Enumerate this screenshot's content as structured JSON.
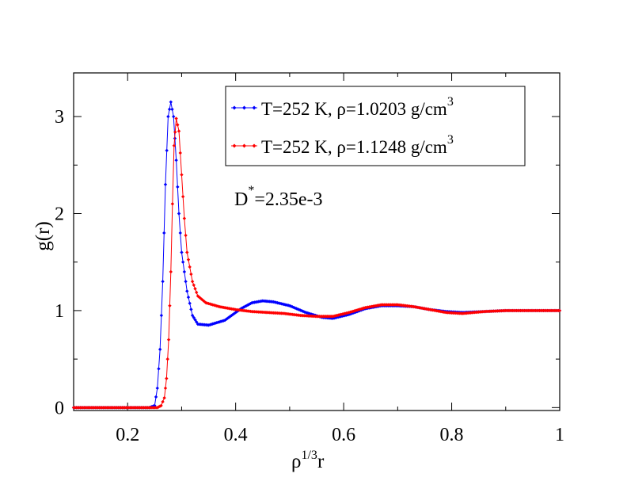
{
  "chart_data": {
    "type": "line",
    "title": "",
    "xlabel": {
      "base": "ρ",
      "sup": "1/3",
      "tail": "r"
    },
    "ylabel": "g(r)",
    "xlim": [
      0.1,
      1.0
    ],
    "ylim": [
      -0.03,
      3.45
    ],
    "xticks": [
      0.2,
      0.4,
      0.6,
      0.8,
      1.0
    ],
    "xtick_labels": [
      "0.2",
      "0.4",
      "0.6",
      "0.8",
      "1"
    ],
    "yticks": [
      0,
      1,
      2,
      3
    ],
    "ytick_labels": [
      "0",
      "1",
      "2",
      "3"
    ],
    "x_minor_step": 0.1,
    "y_minor_step": 0.5,
    "grid": false,
    "legend_position": "top-right",
    "annotation": {
      "base": "D",
      "sup": "*",
      "tail": "=2.35e-3"
    },
    "series": [
      {
        "name": "T=252 K, ρ=1.0203 g/cm3",
        "legend": {
          "text": "T=252 K, ρ=1.0203 g/cm",
          "sup": "3"
        },
        "color": "#0000ff",
        "points": [
          [
            0.1,
            0.0
          ],
          [
            0.24,
            0.0
          ],
          [
            0.25,
            0.02
          ],
          [
            0.255,
            0.2
          ],
          [
            0.26,
            0.6
          ],
          [
            0.265,
            1.3
          ],
          [
            0.27,
            2.3
          ],
          [
            0.275,
            3.0
          ],
          [
            0.28,
            3.15
          ],
          [
            0.285,
            3.0
          ],
          [
            0.29,
            2.55
          ],
          [
            0.295,
            2.0
          ],
          [
            0.3,
            1.6
          ],
          [
            0.31,
            1.2
          ],
          [
            0.32,
            0.95
          ],
          [
            0.33,
            0.86
          ],
          [
            0.35,
            0.85
          ],
          [
            0.38,
            0.9
          ],
          [
            0.41,
            1.02
          ],
          [
            0.43,
            1.08
          ],
          [
            0.45,
            1.1
          ],
          [
            0.47,
            1.09
          ],
          [
            0.5,
            1.05
          ],
          [
            0.53,
            0.98
          ],
          [
            0.56,
            0.93
          ],
          [
            0.58,
            0.92
          ],
          [
            0.61,
            0.96
          ],
          [
            0.64,
            1.02
          ],
          [
            0.67,
            1.05
          ],
          [
            0.7,
            1.05
          ],
          [
            0.73,
            1.04
          ],
          [
            0.76,
            1.01
          ],
          [
            0.79,
            0.99
          ],
          [
            0.82,
            0.98
          ],
          [
            0.86,
            0.99
          ],
          [
            0.9,
            1.0
          ],
          [
            0.95,
            1.0
          ],
          [
            1.0,
            1.0
          ]
        ]
      },
      {
        "name": "T=252 K, ρ=1.1248 g/cm3",
        "legend": {
          "text": "T=252 K, ρ=1.1248 g/cm",
          "sup": "3"
        },
        "color": "#ff0000",
        "points": [
          [
            0.1,
            0.0
          ],
          [
            0.255,
            0.0
          ],
          [
            0.262,
            0.02
          ],
          [
            0.268,
            0.1
          ],
          [
            0.272,
            0.3
          ],
          [
            0.276,
            0.7
          ],
          [
            0.28,
            1.4
          ],
          [
            0.283,
            2.1
          ],
          [
            0.286,
            2.7
          ],
          [
            0.29,
            2.98
          ],
          [
            0.295,
            2.85
          ],
          [
            0.3,
            2.4
          ],
          [
            0.305,
            1.95
          ],
          [
            0.31,
            1.6
          ],
          [
            0.32,
            1.3
          ],
          [
            0.33,
            1.15
          ],
          [
            0.345,
            1.08
          ],
          [
            0.37,
            1.04
          ],
          [
            0.4,
            1.01
          ],
          [
            0.43,
            0.99
          ],
          [
            0.46,
            0.98
          ],
          [
            0.49,
            0.97
          ],
          [
            0.52,
            0.95
          ],
          [
            0.55,
            0.94
          ],
          [
            0.58,
            0.94
          ],
          [
            0.61,
            0.98
          ],
          [
            0.64,
            1.03
          ],
          [
            0.67,
            1.06
          ],
          [
            0.7,
            1.06
          ],
          [
            0.73,
            1.04
          ],
          [
            0.76,
            1.01
          ],
          [
            0.79,
            0.98
          ],
          [
            0.82,
            0.97
          ],
          [
            0.86,
            0.99
          ],
          [
            0.9,
            1.0
          ],
          [
            0.95,
            1.0
          ],
          [
            1.0,
            1.0
          ]
        ]
      }
    ]
  }
}
